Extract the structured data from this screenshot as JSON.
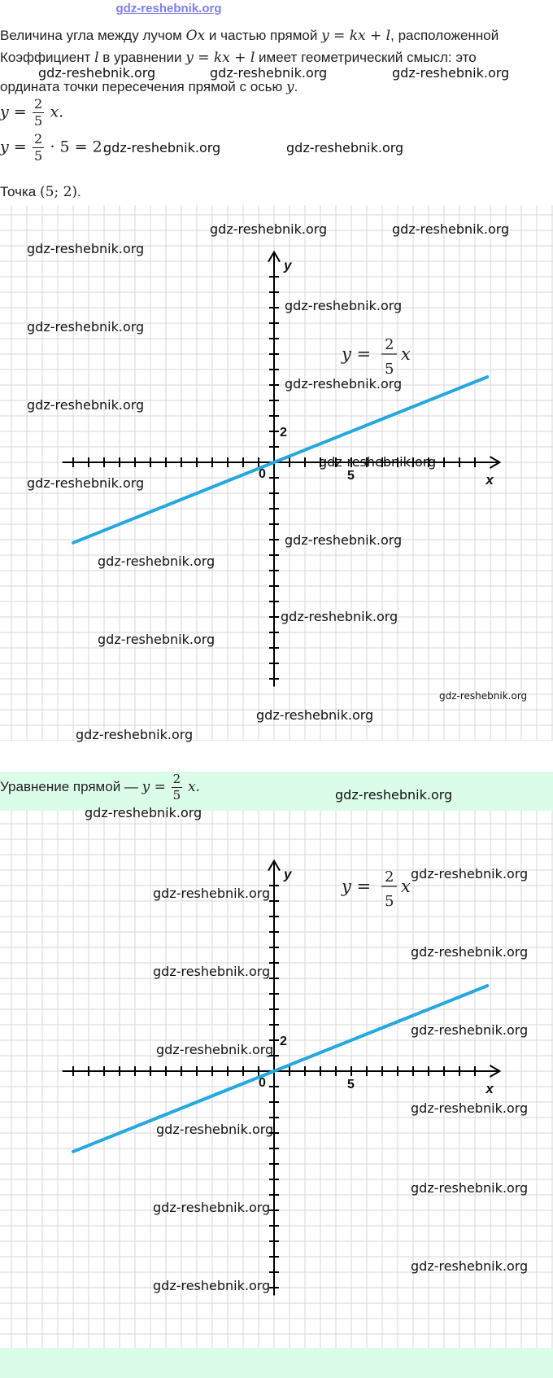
{
  "site_link": "gdz-reshebnik.org",
  "paragraph": {
    "line1_a": "Величина угла между лучом",
    "line1_ox": "Ox",
    "line1_b": "и частью прямой",
    "line1_eq": "y = kx + l",
    "line1_c": ", расположенной",
    "line2_a": "Коэффициент",
    "line2_l": "l",
    "line2_b": "в уравнении",
    "line2_eq": "y = kx + l",
    "line2_c": "имеет геометрический смысл: это",
    "line3_a": "ордината точки пересечения прямой с осью",
    "line3_y": "y",
    "line3_dot": "."
  },
  "formula1": {
    "lhs": "y =",
    "num": "2",
    "den": "5",
    "rhs": "x."
  },
  "formula2": {
    "lhs": "y =",
    "num": "2",
    "den": "5",
    "rhs": "· 5 = 2."
  },
  "point_line": {
    "label": "Точка",
    "value": "(5; 2)",
    "dot": "."
  },
  "answer": {
    "label": "Уравнение прямой —",
    "lhs": "y =",
    "num": "2",
    "den": "5",
    "rhs": "x."
  },
  "watermark": "gdz-reshebnik.org",
  "graph": {
    "x_axis_label": "x",
    "y_axis_label": "y",
    "origin_label": "0",
    "x_tick_label": "5",
    "y_tick_label": "2",
    "equation_lhs": "y =",
    "equation_num": "2",
    "equation_den": "5",
    "equation_rhs": "x"
  },
  "chart_data": {
    "type": "line",
    "title": "",
    "xlabel": "x",
    "ylabel": "y",
    "xlim": [
      -13.7,
      14.6
    ],
    "ylim": [
      -14.5,
      13.6
    ],
    "x_tick_labels": [
      5
    ],
    "y_tick_labels": [
      2
    ],
    "grid": true,
    "series": [
      {
        "name": "y = 2/5 x",
        "x": [
          -13,
          13.8
        ],
        "y": [
          -5.2,
          5.52
        ]
      }
    ],
    "colors": {
      "line": "#24a8e0",
      "axis": "#000000",
      "grid": "#d7d7d7"
    }
  }
}
